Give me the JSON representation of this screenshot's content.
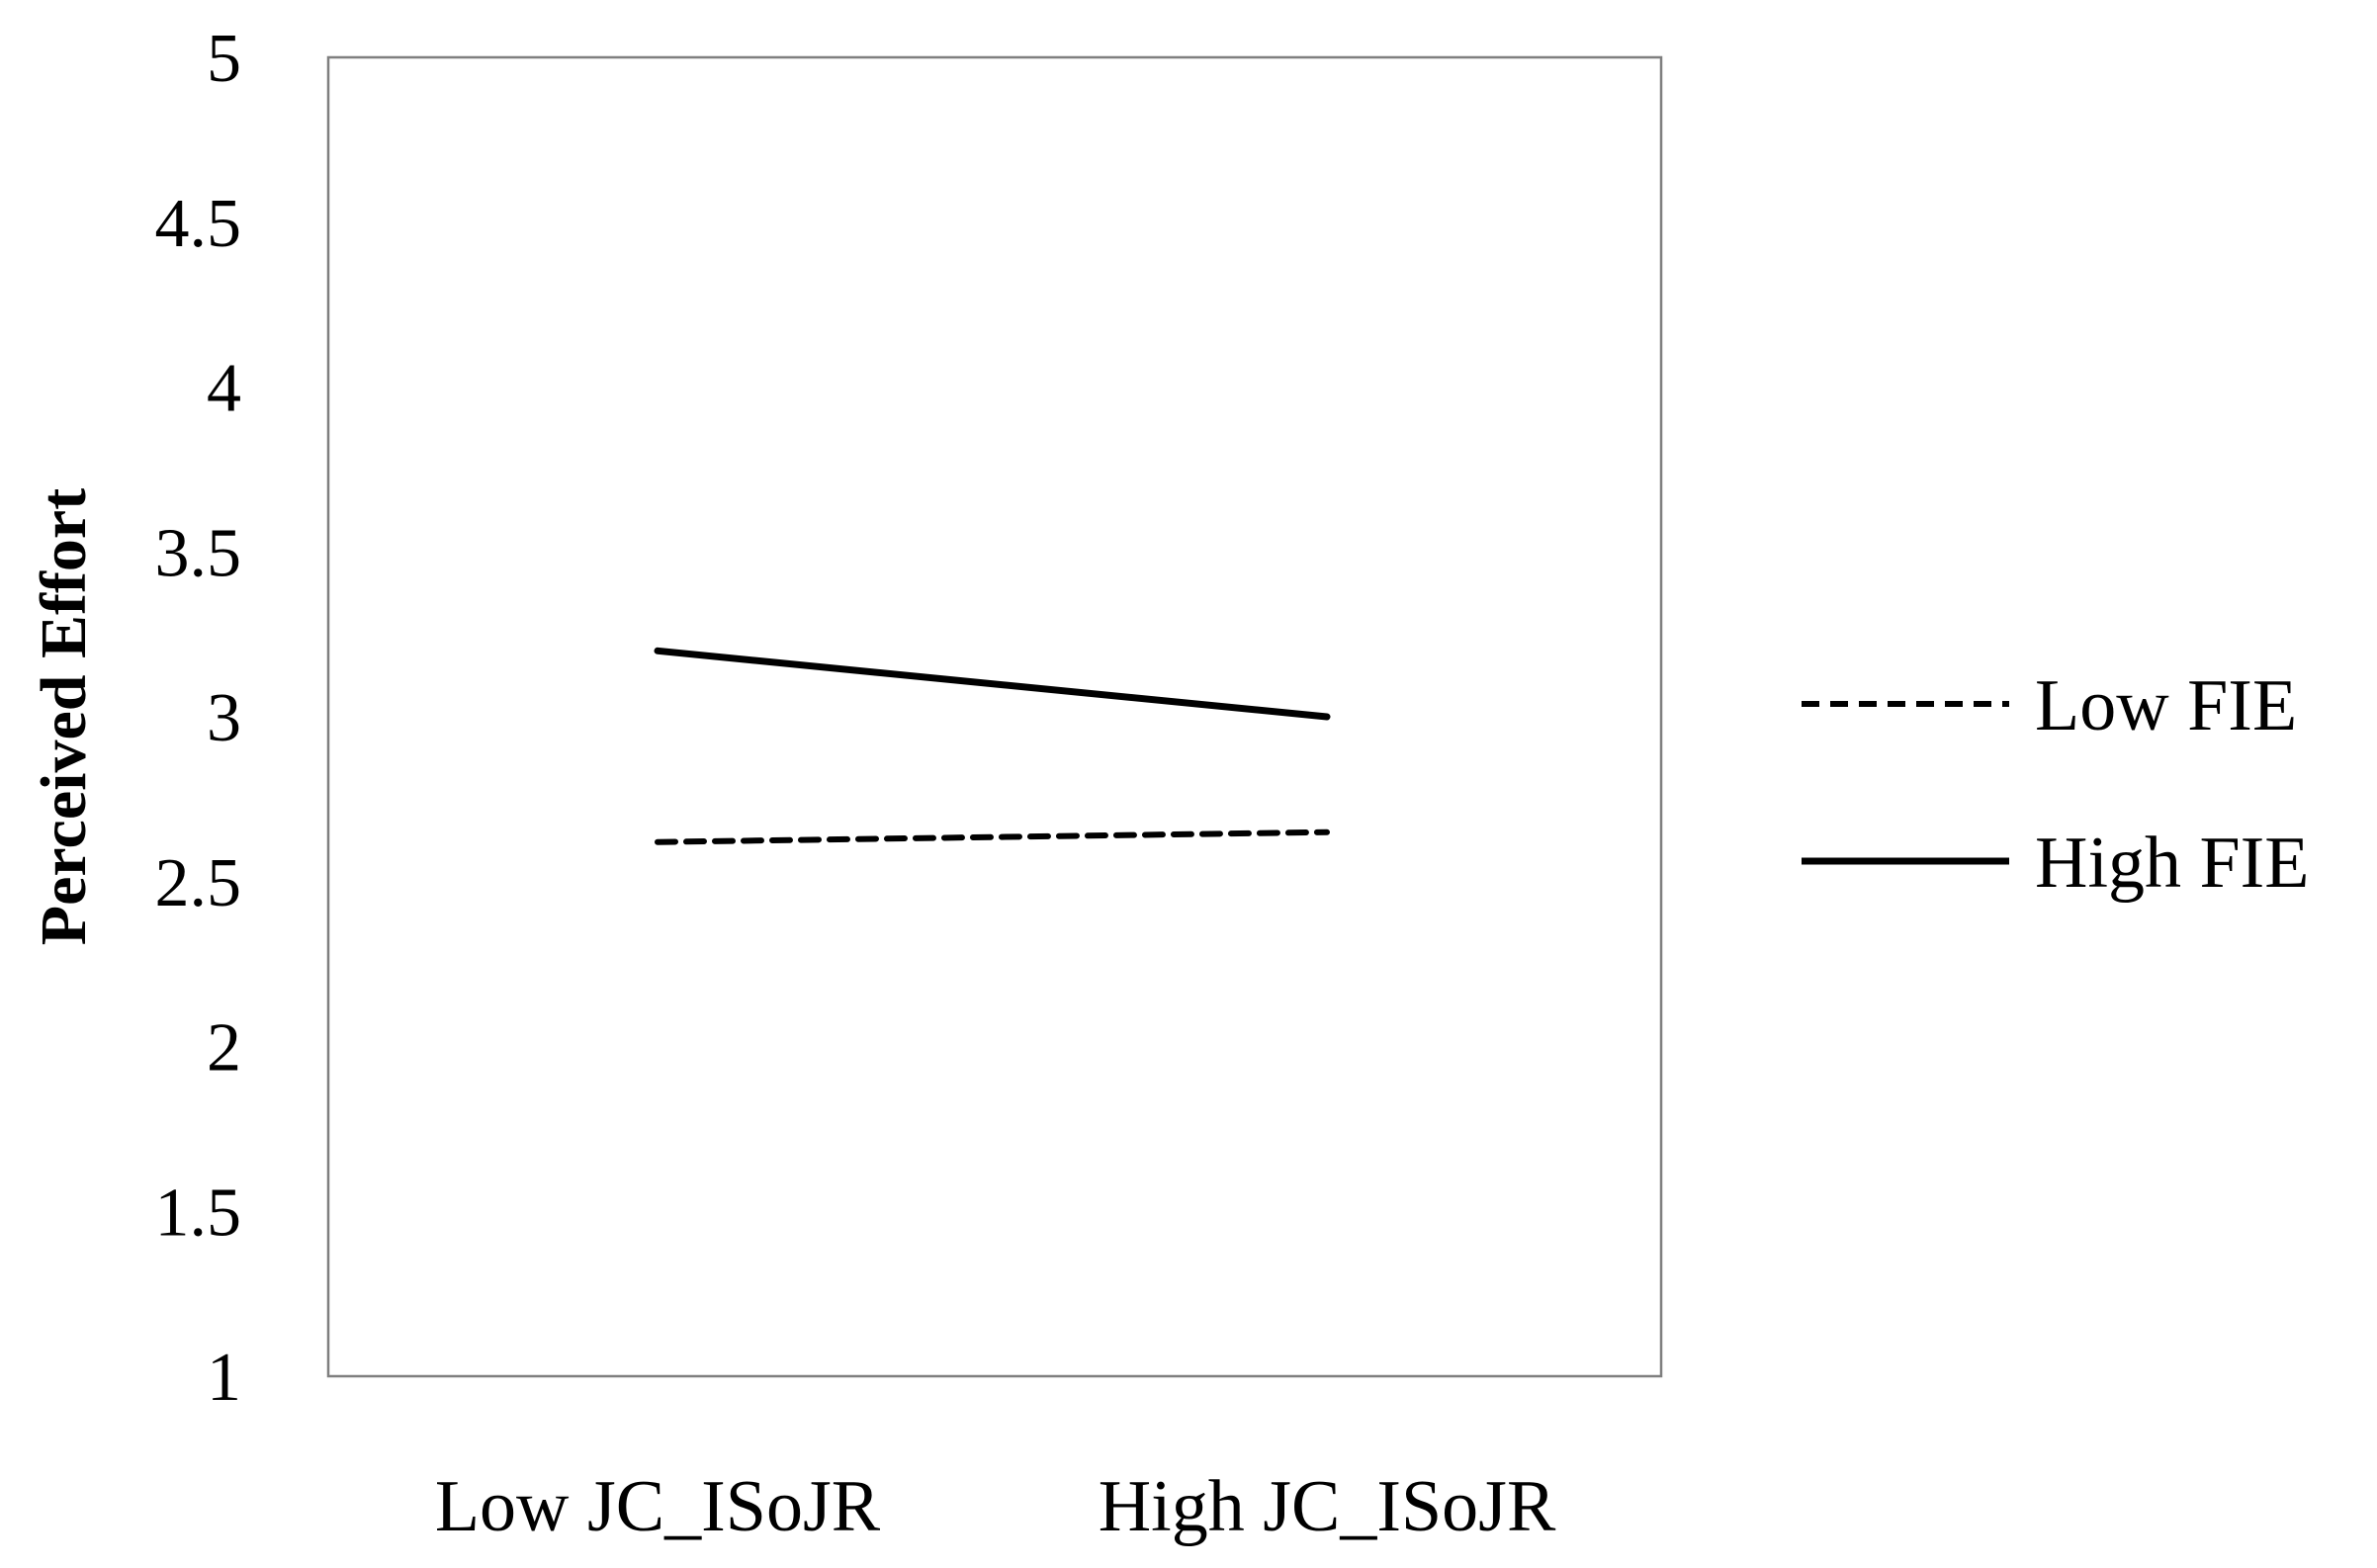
{
  "chart_data": {
    "type": "line",
    "title": "",
    "xlabel": "",
    "ylabel": "Perceived Effort",
    "categories": [
      "Low JC_ISoJR",
      "High JC_ISoJR"
    ],
    "series": [
      {
        "name": "Low FIE",
        "values": [
          2.62,
          2.65
        ],
        "style": "dashed",
        "color": "#000000"
      },
      {
        "name": "High FIE",
        "values": [
          3.2,
          3.0
        ],
        "style": "solid",
        "color": "#000000"
      }
    ],
    "yticks": [
      "1",
      "1.5",
      "2",
      "2.5",
      "3",
      "3.5",
      "4",
      "4.5",
      "5"
    ],
    "ylim": [
      1,
      5
    ],
    "grid": false,
    "legend": "right"
  }
}
